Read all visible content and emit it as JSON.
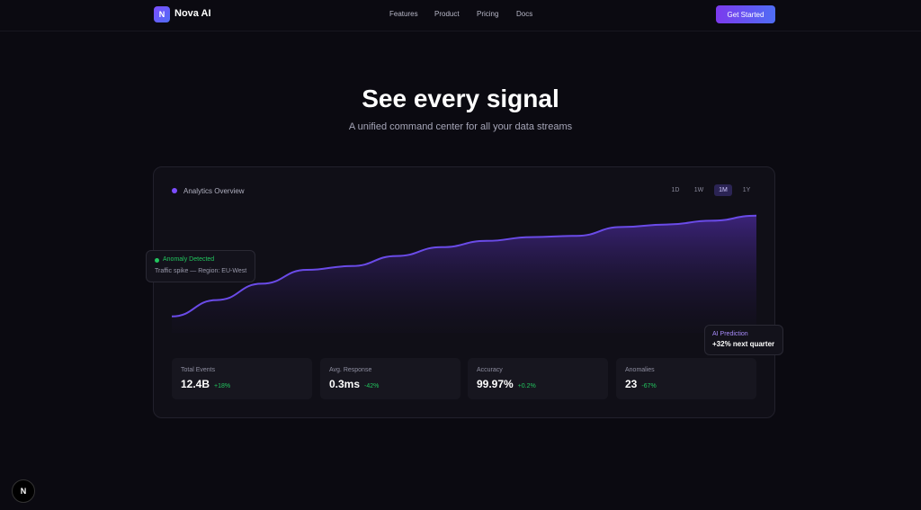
{
  "nav": {
    "logo": "N",
    "brand": "Nova AI",
    "links": [
      "Features",
      "Product",
      "Pricing",
      "Docs"
    ],
    "cta": "Get Started"
  },
  "hero": {
    "title": "See every signal",
    "subtitle": "A unified command center for all your data streams"
  },
  "chart_data": {
    "type": "area",
    "title": "Analytics Overview",
    "values": [
      13,
      26,
      39,
      50,
      53,
      61,
      68,
      73,
      76,
      77,
      84,
      86,
      89,
      93
    ],
    "ylim": [
      0,
      100
    ],
    "color": "#6a4be8"
  },
  "ranges": [
    "1D",
    "1W",
    "1M",
    "1Y"
  ],
  "anomaly": {
    "label": "Anomaly Detected",
    "detail": "Traffic spike — Region: EU-West"
  },
  "prediction": {
    "label": "AI Prediction",
    "value": "+32% next quarter"
  },
  "stats": [
    {
      "label": "Total Events",
      "value": "12.4B",
      "change": "+18%"
    },
    {
      "label": "Avg. Response",
      "value": "0.3ms",
      "change": "-42%"
    },
    {
      "label": "Accuracy",
      "value": "99.97%",
      "change": "+0.2%"
    },
    {
      "label": "Anomalies",
      "value": "23",
      "change": "-67%"
    }
  ],
  "badge": "N"
}
